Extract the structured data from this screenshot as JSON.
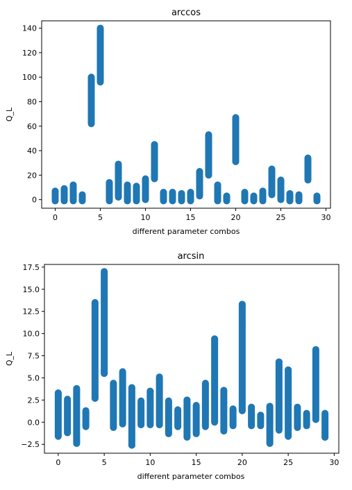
{
  "chart_data": [
    {
      "type": "scatter",
      "title": "arccos",
      "xlabel": "different parameter combos",
      "ylabel": "Q_L",
      "xlim": [
        -1.5,
        30.5
      ],
      "ylim": [
        -7,
        146
      ],
      "xticks": [
        0,
        5,
        10,
        15,
        20,
        25,
        30
      ],
      "yticks": [
        0,
        20,
        40,
        60,
        80,
        100,
        120,
        140
      ],
      "color": "#1f77b4",
      "grid": false,
      "x": [
        0,
        1,
        2,
        3,
        4,
        5,
        6,
        7,
        8,
        9,
        10,
        11,
        12,
        13,
        14,
        15,
        16,
        17,
        18,
        19,
        20,
        21,
        22,
        23,
        24,
        25,
        26,
        27,
        28,
        29
      ],
      "ranges": [
        [
          -1,
          7
        ],
        [
          -1,
          9
        ],
        [
          -1,
          12
        ],
        [
          -1,
          4
        ],
        [
          62,
          100
        ],
        [
          96,
          140
        ],
        [
          -1,
          14
        ],
        [
          2,
          29
        ],
        [
          -1,
          12
        ],
        [
          -1,
          11
        ],
        [
          0,
          17
        ],
        [
          17,
          45
        ],
        [
          -1,
          6
        ],
        [
          -1,
          6
        ],
        [
          -1,
          5
        ],
        [
          -1,
          6
        ],
        [
          3,
          23
        ],
        [
          20,
          53
        ],
        [
          -1,
          12
        ],
        [
          -1,
          3
        ],
        [
          31,
          67
        ],
        [
          -1,
          6
        ],
        [
          -1,
          3
        ],
        [
          -1,
          7
        ],
        [
          4,
          25
        ],
        [
          0,
          16
        ],
        [
          -1,
          5
        ],
        [
          -1,
          4
        ],
        [
          16,
          34
        ],
        [
          -1,
          3
        ]
      ]
    },
    {
      "type": "scatter",
      "title": "arcsin",
      "xlabel": "different parameter combos",
      "ylabel": "Q_L",
      "xlim": [
        -1.5,
        30.5
      ],
      "ylim": [
        -3.5,
        17.8
      ],
      "xticks": [
        0,
        5,
        10,
        15,
        20,
        25,
        30
      ],
      "yticks": [
        -2.5,
        0.0,
        2.5,
        5.0,
        7.5,
        10.0,
        12.5,
        15.0,
        17.5
      ],
      "ytick_labels": [
        "−2.5",
        "0.0",
        "2.5",
        "5.0",
        "7.5",
        "10.0",
        "12.5",
        "15.0",
        "17.5"
      ],
      "color": "#1f77b4",
      "grid": false,
      "x": [
        0,
        1,
        2,
        3,
        4,
        5,
        6,
        7,
        8,
        9,
        10,
        11,
        12,
        13,
        14,
        15,
        16,
        17,
        18,
        19,
        20,
        21,
        22,
        23,
        24,
        25,
        26,
        27,
        28,
        29
      ],
      "ranges": [
        [
          -1.6,
          3.3
        ],
        [
          -1.2,
          2.6
        ],
        [
          -2.4,
          3.8
        ],
        [
          -0.5,
          1.3
        ],
        [
          2.7,
          13.5
        ],
        [
          5.5,
          17.0
        ],
        [
          -0.6,
          4.4
        ],
        [
          -0.2,
          5.7
        ],
        [
          -2.6,
          3.9
        ],
        [
          -0.3,
          2.4
        ],
        [
          -0.3,
          3.5
        ],
        [
          -0.3,
          5.1
        ],
        [
          -1.3,
          2.4
        ],
        [
          -0.5,
          1.4
        ],
        [
          -1.7,
          2.5
        ],
        [
          -1.3,
          1.9
        ],
        [
          -0.5,
          4.4
        ],
        [
          0.0,
          9.4
        ],
        [
          -1.0,
          3.6
        ],
        [
          -0.4,
          1.5
        ],
        [
          1.3,
          13.3
        ],
        [
          -0.4,
          1.7
        ],
        [
          -0.4,
          0.8
        ],
        [
          -2.4,
          1.8
        ],
        [
          -0.9,
          6.8
        ],
        [
          -1.6,
          5.9
        ],
        [
          -0.6,
          1.7
        ],
        [
          -0.4,
          1.0
        ],
        [
          0.3,
          8.2
        ],
        [
          -1.7,
          1.0
        ]
      ],
      "isolated_points": [
        [
          0,
          2.9
        ],
        [
          0,
          3.3
        ],
        [
          2,
          3.6
        ],
        [
          4,
          2.7
        ],
        [
          4,
          2.9
        ],
        [
          5,
          5.5
        ],
        [
          5,
          5.8
        ],
        [
          8,
          3.9
        ],
        [
          8,
          -2.6
        ],
        [
          10,
          3.5
        ],
        [
          14,
          2.5
        ],
        [
          17,
          9.4
        ],
        [
          20,
          11.3
        ],
        [
          20,
          13.3
        ],
        [
          20,
          1.3
        ],
        [
          24,
          6.8
        ],
        [
          25,
          5.9
        ],
        [
          29,
          -1.7
        ]
      ]
    }
  ]
}
